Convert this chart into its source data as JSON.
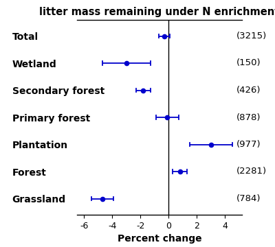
{
  "title": "litter mass remaining under N enrichment",
  "xlabel": "Percent change",
  "categories": [
    "Total",
    "Wetland",
    "Secondary forest",
    "Primary forest",
    "Plantation",
    "Forest",
    "Grassland"
  ],
  "sample_sizes": [
    "(3215)",
    "(150)",
    "(426)",
    "(878)",
    "(977)",
    "(2281)",
    "(784)"
  ],
  "centers": [
    -0.3,
    -3.0,
    -1.8,
    -0.1,
    3.0,
    0.8,
    -4.7
  ],
  "ci_low": [
    -0.7,
    -4.7,
    -2.3,
    -0.9,
    1.5,
    0.3,
    -5.5
  ],
  "ci_high": [
    0.1,
    -1.3,
    -1.3,
    0.7,
    4.5,
    1.3,
    -3.9
  ],
  "xlim": [
    -6.5,
    5.2
  ],
  "xticks": [
    -6,
    -4,
    -2,
    0,
    2,
    4
  ],
  "point_color": "#0000cc",
  "line_color": "#0000cc",
  "title_fontsize": 10.5,
  "label_fontsize": 10,
  "tick_fontsize": 9,
  "n_fontsize": 9.5,
  "capsize_half": 0.07
}
